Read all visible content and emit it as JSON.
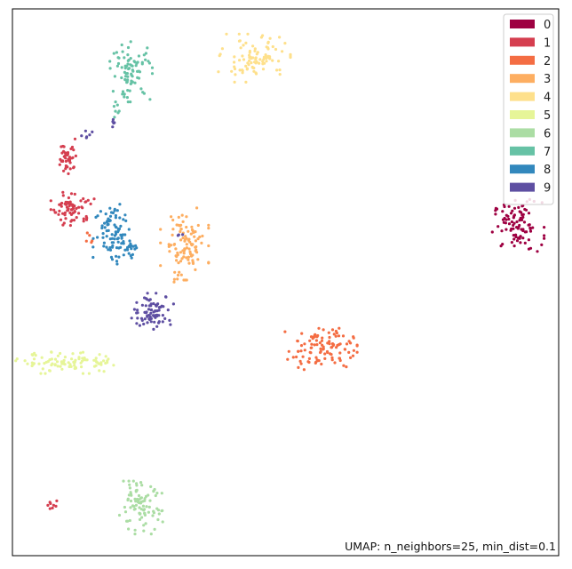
{
  "chart_data": {
    "type": "scatter",
    "title": "",
    "xlabel": "",
    "ylabel": "",
    "xlim": [
      0,
      100
    ],
    "ylim": [
      0,
      100
    ],
    "axes_ticks": false,
    "grid": false,
    "legend_position": "top-right",
    "annotation": "UMAP: n_neighbors=25, min_dist=0.1",
    "series": [
      {
        "name": "0",
        "color": "#9e0142",
        "clusters": [
          {
            "cx": 92.5,
            "cy": 60.3,
            "sx": 2.2,
            "sy": 2.2,
            "n": 95
          }
        ]
      },
      {
        "name": "1",
        "color": "#d53e4f",
        "clusters": [
          {
            "cx": 11.0,
            "cy": 63.5,
            "sx": 1.8,
            "sy": 1.5,
            "n": 70
          },
          {
            "cx": 10.2,
            "cy": 73.0,
            "sx": 0.9,
            "sy": 1.6,
            "n": 40
          },
          {
            "cx": 7.3,
            "cy": 9.3,
            "sx": 0.4,
            "sy": 0.6,
            "n": 8
          }
        ]
      },
      {
        "name": "2",
        "color": "#f46d43",
        "clusters": [
          {
            "cx": 56.5,
            "cy": 38.0,
            "sx": 3.0,
            "sy": 1.8,
            "n": 110
          },
          {
            "cx": 14.2,
            "cy": 57.7,
            "sx": 0.4,
            "sy": 0.6,
            "n": 5
          }
        ]
      },
      {
        "name": "3",
        "color": "#fdae61",
        "clusters": [
          {
            "cx": 31.5,
            "cy": 57.0,
            "sx": 2.0,
            "sy": 3.0,
            "n": 100
          },
          {
            "cx": 29.8,
            "cy": 50.5,
            "sx": 0.4,
            "sy": 0.8,
            "n": 6
          }
        ]
      },
      {
        "name": "4",
        "color": "#fee08b",
        "clusters": [
          {
            "cx": 44.3,
            "cy": 91.0,
            "sx": 3.0,
            "sy": 2.0,
            "n": 95
          }
        ]
      },
      {
        "name": "5",
        "color": "#e6f598",
        "clusters": [
          {
            "cx": 10.5,
            "cy": 35.3,
            "sx": 4.5,
            "sy": 0.9,
            "n": 95
          }
        ]
      },
      {
        "name": "6",
        "color": "#abdda4",
        "clusters": [
          {
            "cx": 23.3,
            "cy": 8.8,
            "sx": 2.0,
            "sy": 2.2,
            "n": 90
          }
        ]
      },
      {
        "name": "7",
        "color": "#66c2a5",
        "clusters": [
          {
            "cx": 21.8,
            "cy": 88.5,
            "sx": 1.8,
            "sy": 2.5,
            "n": 85
          },
          {
            "cx": 19.0,
            "cy": 81.0,
            "sx": 0.4,
            "sy": 0.8,
            "n": 6
          }
        ]
      },
      {
        "name": "8",
        "color": "#3288bd",
        "clusters": [
          {
            "cx": 18.5,
            "cy": 59.5,
            "sx": 1.7,
            "sy": 2.8,
            "n": 85
          },
          {
            "cx": 21.5,
            "cy": 56.5,
            "sx": 0.8,
            "sy": 1.0,
            "n": 20
          }
        ]
      },
      {
        "name": "9",
        "color": "#5e4fa2",
        "clusters": [
          {
            "cx": 25.7,
            "cy": 44.7,
            "sx": 1.8,
            "sy": 1.5,
            "n": 80
          },
          {
            "cx": 13.5,
            "cy": 76.8,
            "sx": 0.5,
            "sy": 0.4,
            "n": 6
          },
          {
            "cx": 18.5,
            "cy": 79.3,
            "sx": 0.4,
            "sy": 0.4,
            "n": 5
          },
          {
            "cx": 31.0,
            "cy": 58.7,
            "sx": 0.4,
            "sy": 0.4,
            "n": 3
          }
        ]
      }
    ]
  }
}
